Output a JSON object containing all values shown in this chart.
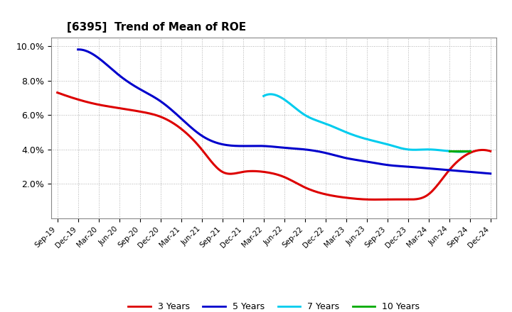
{
  "title": "[6395]  Trend of Mean of ROE",
  "ylim": [
    0.0,
    0.105
  ],
  "yticks": [
    0.02,
    0.04,
    0.06,
    0.08,
    0.1
  ],
  "ytick_labels": [
    "2.0%",
    "4.0%",
    "6.0%",
    "8.0%",
    "10.0%"
  ],
  "background_color": "#ffffff",
  "grid_color": "#b0b0b0",
  "series": {
    "3 Years": {
      "color": "#dd0000",
      "dates": [
        "Sep-19",
        "Dec-19",
        "Mar-20",
        "Jun-20",
        "Sep-20",
        "Dec-20",
        "Mar-21",
        "Jun-21",
        "Sep-21",
        "Dec-21",
        "Mar-22",
        "Jun-22",
        "Sep-22",
        "Dec-22",
        "Mar-23",
        "Jun-23",
        "Sep-23",
        "Dec-23",
        "Mar-24",
        "Jun-24",
        "Sep-24",
        "Dec-24"
      ],
      "values": [
        0.073,
        0.069,
        0.066,
        0.064,
        0.062,
        0.059,
        0.052,
        0.04,
        0.027,
        0.027,
        0.027,
        0.024,
        0.018,
        0.014,
        0.012,
        0.011,
        0.011,
        0.011,
        0.014,
        0.028,
        0.038,
        0.039
      ]
    },
    "5 Years": {
      "color": "#0000cc",
      "dates": [
        "Sep-19",
        "Dec-19",
        "Mar-20",
        "Jun-20",
        "Sep-20",
        "Dec-20",
        "Mar-21",
        "Jun-21",
        "Sep-21",
        "Dec-21",
        "Mar-22",
        "Jun-22",
        "Sep-22",
        "Dec-22",
        "Mar-23",
        "Jun-23",
        "Sep-23",
        "Dec-23",
        "Mar-24",
        "Jun-24",
        "Sep-24",
        "Dec-24"
      ],
      "values": [
        null,
        0.098,
        0.093,
        0.083,
        0.075,
        0.068,
        0.058,
        0.048,
        0.043,
        0.042,
        0.042,
        0.041,
        0.04,
        0.038,
        0.035,
        0.033,
        0.031,
        0.03,
        0.029,
        0.028,
        0.027,
        0.026
      ]
    },
    "7 Years": {
      "color": "#00ccee",
      "dates": [
        "Mar-22",
        "Jun-22",
        "Sep-22",
        "Dec-22",
        "Mar-23",
        "Jun-23",
        "Sep-23",
        "Dec-23",
        "Mar-24",
        "Jun-24",
        "Sep-24"
      ],
      "values": [
        0.071,
        0.069,
        0.06,
        0.055,
        0.05,
        0.046,
        0.043,
        0.04,
        0.04,
        0.039,
        0.039
      ]
    },
    "10 Years": {
      "color": "#00aa00",
      "dates": [
        "Jun-24",
        "Sep-24"
      ],
      "values": [
        0.039,
        0.039
      ]
    }
  },
  "legend_order": [
    "3 Years",
    "5 Years",
    "7 Years",
    "10 Years"
  ],
  "legend_colors": [
    "#dd0000",
    "#0000cc",
    "#00ccee",
    "#00aa00"
  ]
}
